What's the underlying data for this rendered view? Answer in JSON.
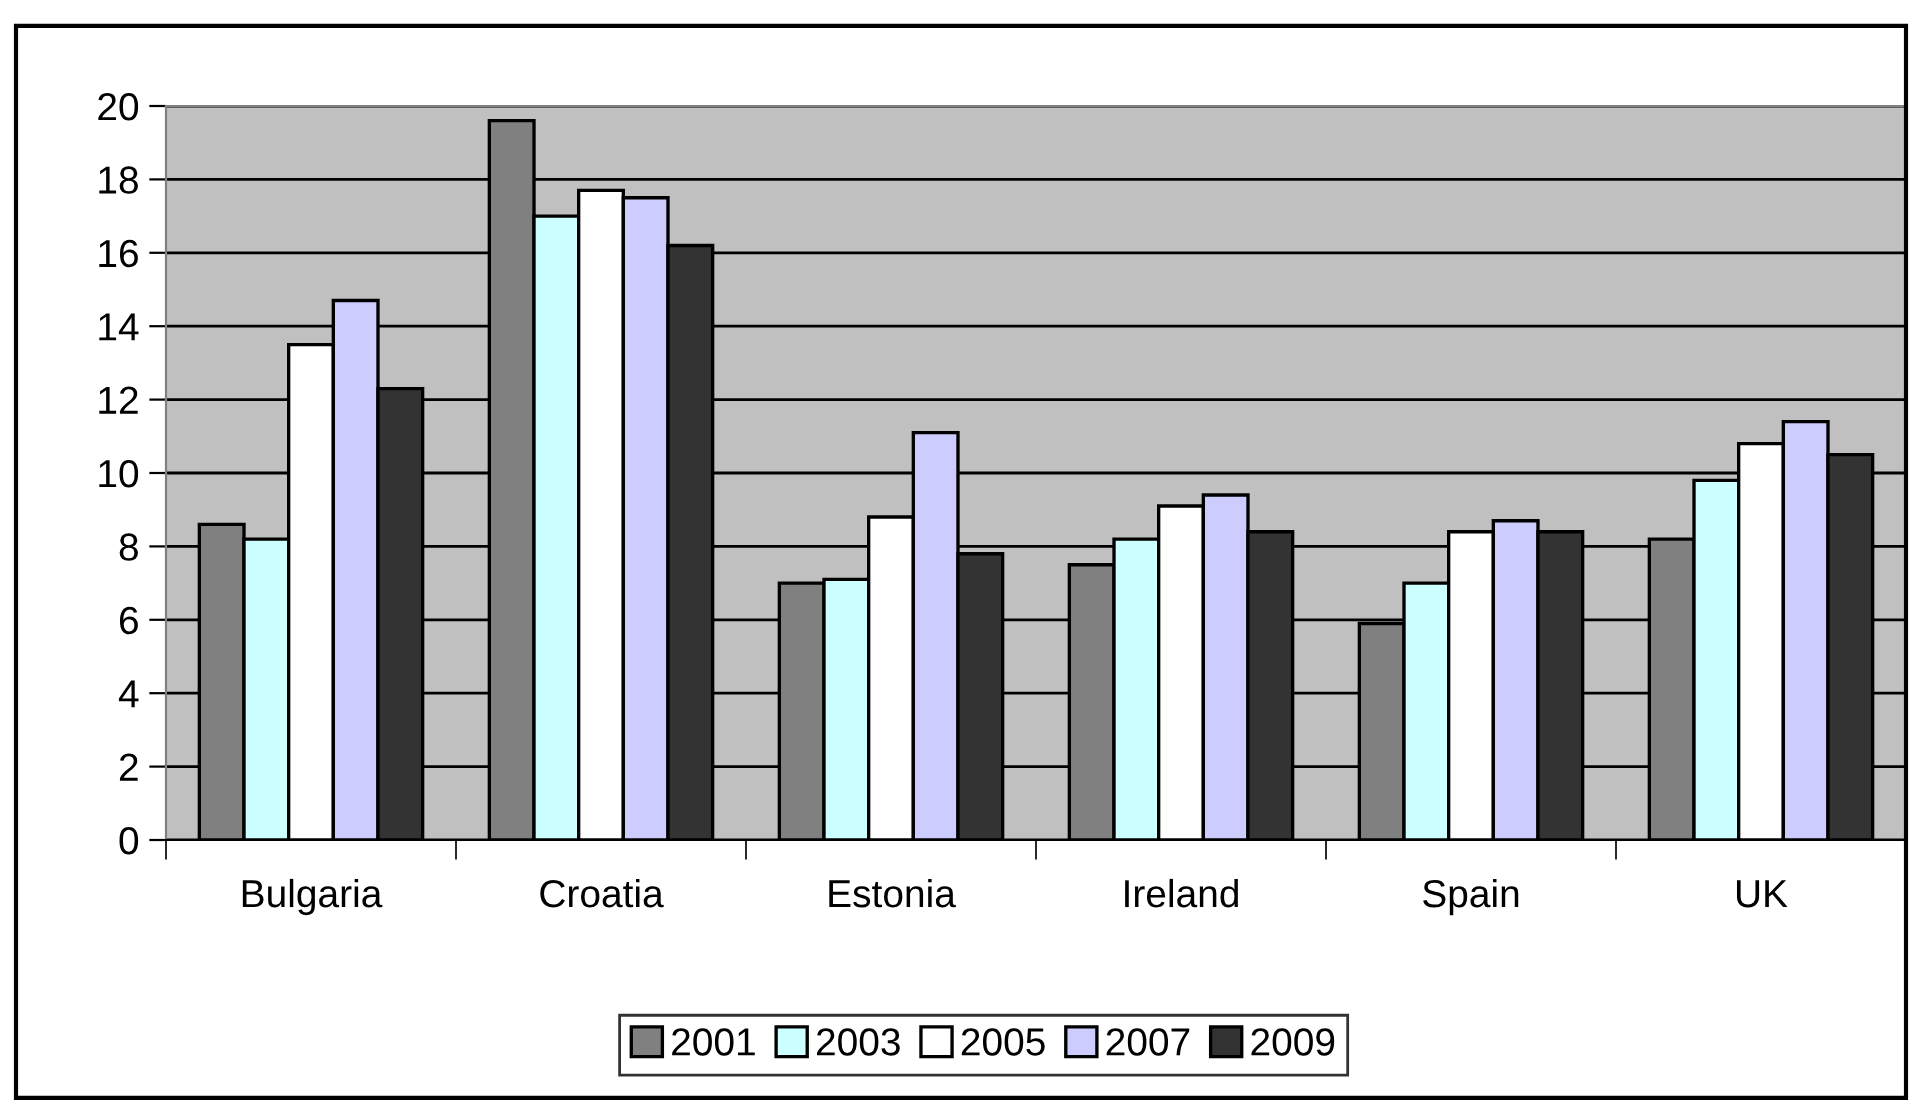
{
  "chart_data": {
    "type": "bar",
    "categories": [
      "Bulgaria",
      "Croatia",
      "Estonia",
      "Ireland",
      "Spain",
      "UK"
    ],
    "series": [
      {
        "name": "2001",
        "color": "#808080",
        "values": [
          8.6,
          19.6,
          7.0,
          7.5,
          5.9,
          8.2
        ]
      },
      {
        "name": "2003",
        "color": "#ccffff",
        "values": [
          8.2,
          17.0,
          7.1,
          8.2,
          7.0,
          9.8
        ]
      },
      {
        "name": "2005",
        "color": "#ffffff",
        "values": [
          13.5,
          17.7,
          8.8,
          9.1,
          8.4,
          10.8
        ]
      },
      {
        "name": "2007",
        "color": "#ccccff",
        "values": [
          14.7,
          17.5,
          11.1,
          9.4,
          8.7,
          11.4
        ]
      },
      {
        "name": "2009",
        "color": "#333333",
        "values": [
          12.3,
          16.2,
          7.8,
          8.4,
          8.4,
          10.5
        ]
      }
    ],
    "ylim": [
      0,
      20
    ],
    "yticks": [
      0,
      2,
      4,
      6,
      8,
      10,
      12,
      14,
      16,
      18,
      20
    ],
    "grid": "y",
    "legend": "bottom"
  }
}
